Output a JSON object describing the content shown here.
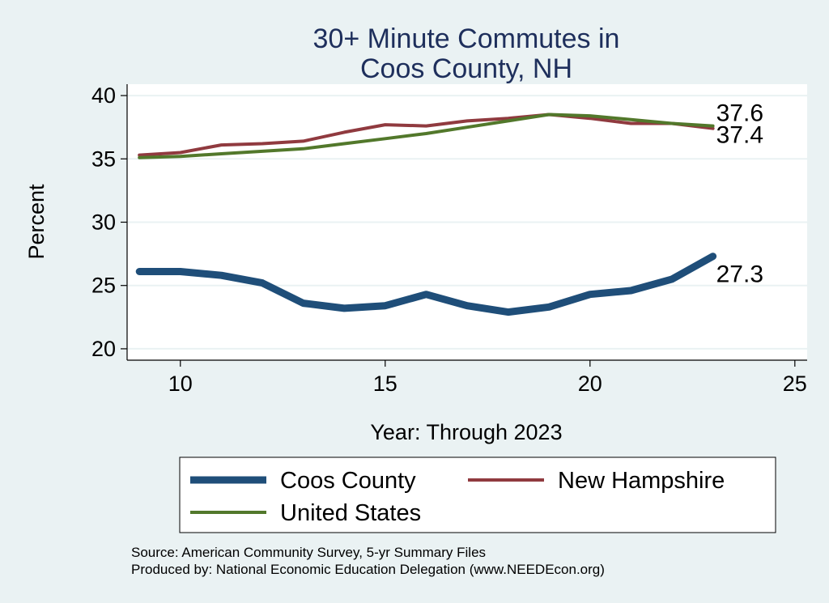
{
  "chart_data": {
    "type": "line",
    "title": [
      "30+ Minute Commutes in",
      "Coos County, NH"
    ],
    "xlabel": "Year: Through 2023",
    "ylabel": "Percent",
    "xlim": [
      8.7,
      25.3
    ],
    "ylim": [
      19.1,
      40.9
    ],
    "xticks": [
      10,
      15,
      20,
      25
    ],
    "yticks": [
      20,
      25,
      30,
      35,
      40
    ],
    "grid": true,
    "x": [
      9,
      10,
      11,
      12,
      13,
      14,
      15,
      16,
      17,
      18,
      19,
      20,
      21,
      22,
      23
    ],
    "series": [
      {
        "name": "Coos County",
        "color": "#1f4e79",
        "width": "thick",
        "values": [
          26.1,
          26.1,
          25.8,
          25.2,
          23.6,
          23.2,
          23.4,
          24.3,
          23.4,
          22.9,
          23.3,
          24.3,
          24.6,
          25.5,
          27.3
        ],
        "end_label": "27.3"
      },
      {
        "name": "New Hampshire",
        "color": "#903a3f",
        "width": "thin",
        "values": [
          35.3,
          35.5,
          36.1,
          36.2,
          36.4,
          37.1,
          37.7,
          37.6,
          38.0,
          38.2,
          38.5,
          38.2,
          37.8,
          37.8,
          37.4
        ],
        "end_label": "37.4"
      },
      {
        "name": "United States",
        "color": "#52782b",
        "width": "thin",
        "values": [
          35.1,
          35.2,
          35.4,
          35.6,
          35.8,
          36.2,
          36.6,
          37.0,
          37.5,
          38.0,
          38.5,
          38.4,
          38.1,
          37.8,
          37.6
        ],
        "end_label": "37.6"
      }
    ],
    "legend": {
      "placement": "bottom",
      "order": [
        "Coos County",
        "New Hampshire",
        "United States"
      ]
    },
    "notes": [
      "Source: American Community Survey, 5-yr Summary Files",
      "Produced by: National Economic Education Delegation (www.NEEDEcon.org)"
    ]
  }
}
